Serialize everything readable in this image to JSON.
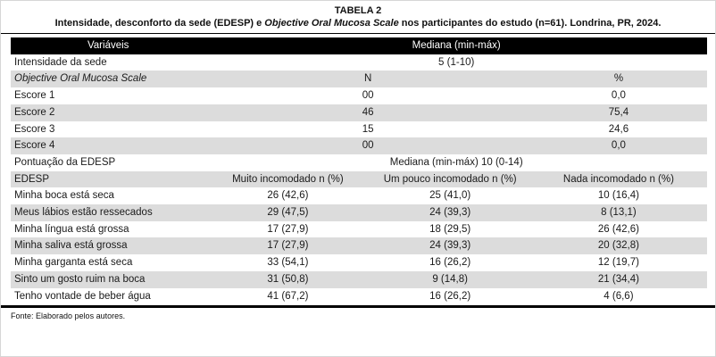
{
  "title": {
    "label": "TABELA 2",
    "caption_pre": "Intensidade, desconforto da sede (EDESP) e ",
    "caption_italic": "Objective Oral Mucosa Scale",
    "caption_post": " nos participantes do estudo (n=61). Londrina, PR, 2024."
  },
  "colors": {
    "header_bg": "#000000",
    "header_text": "#ffffff",
    "shade": "#dcdcdc",
    "rule": "#000000"
  },
  "table": {
    "header_row": {
      "cells": [
        {
          "t": "Variáveis",
          "span": 1,
          "align": "center"
        },
        {
          "t": "Mediana (min-máx)",
          "span": 3,
          "align": "center"
        }
      ]
    },
    "rows": [
      {
        "shade": false,
        "cells": [
          {
            "t": "Intensidade da sede",
            "span": 1,
            "align": "left"
          },
          {
            "t": "5 (1-10)",
            "span": 3,
            "align": "center"
          }
        ]
      },
      {
        "shade": true,
        "cells": [
          {
            "t": "Objective Oral Mucosa Scale",
            "span": 1,
            "align": "left",
            "italic": true
          },
          {
            "t": "N",
            "span": 2,
            "align": "center"
          },
          {
            "t": "%",
            "span": 1,
            "align": "center"
          }
        ]
      },
      {
        "shade": false,
        "cells": [
          {
            "t": "Escore 1",
            "span": 1,
            "align": "left"
          },
          {
            "t": "00",
            "span": 2,
            "align": "center"
          },
          {
            "t": "0,0",
            "span": 1,
            "align": "center"
          }
        ]
      },
      {
        "shade": true,
        "cells": [
          {
            "t": "Escore 2",
            "span": 1,
            "align": "left"
          },
          {
            "t": "46",
            "span": 2,
            "align": "center"
          },
          {
            "t": "75,4",
            "span": 1,
            "align": "center"
          }
        ]
      },
      {
        "shade": false,
        "cells": [
          {
            "t": "Escore 3",
            "span": 1,
            "align": "left"
          },
          {
            "t": "15",
            "span": 2,
            "align": "center"
          },
          {
            "t": "24,6",
            "span": 1,
            "align": "center"
          }
        ]
      },
      {
        "shade": true,
        "cells": [
          {
            "t": "Escore 4",
            "span": 1,
            "align": "left"
          },
          {
            "t": "00",
            "span": 2,
            "align": "center"
          },
          {
            "t": "0,0",
            "span": 1,
            "align": "center"
          }
        ]
      },
      {
        "shade": false,
        "cells": [
          {
            "t": "Pontuação da EDESP",
            "span": 1,
            "align": "left"
          },
          {
            "t": "Mediana (min-máx) 10 (0-14)",
            "span": 3,
            "align": "center"
          }
        ]
      },
      {
        "shade": true,
        "cells": [
          {
            "t": "EDESP",
            "span": 1,
            "align": "left"
          },
          {
            "t": "Muito incomodado n (%)",
            "span": 1,
            "align": "center"
          },
          {
            "t": "Um pouco incomodado n (%)",
            "span": 1,
            "align": "center"
          },
          {
            "t": "Nada incomodado n (%)",
            "span": 1,
            "align": "center"
          }
        ]
      },
      {
        "shade": false,
        "cells": [
          {
            "t": "Minha boca está seca",
            "span": 1,
            "align": "left"
          },
          {
            "t": "26 (42,6)",
            "span": 1,
            "align": "center"
          },
          {
            "t": "25 (41,0)",
            "span": 1,
            "align": "center"
          },
          {
            "t": "10 (16,4)",
            "span": 1,
            "align": "center"
          }
        ]
      },
      {
        "shade": true,
        "cells": [
          {
            "t": "Meus lábios estão ressecados",
            "span": 1,
            "align": "left"
          },
          {
            "t": "29 (47,5)",
            "span": 1,
            "align": "center"
          },
          {
            "t": "24 (39,3)",
            "span": 1,
            "align": "center"
          },
          {
            "t": "8 (13,1)",
            "span": 1,
            "align": "center"
          }
        ]
      },
      {
        "shade": false,
        "cells": [
          {
            "t": "Minha língua está grossa",
            "span": 1,
            "align": "left"
          },
          {
            "t": "17 (27,9)",
            "span": 1,
            "align": "center"
          },
          {
            "t": "18 (29,5)",
            "span": 1,
            "align": "center"
          },
          {
            "t": "26 (42,6)",
            "span": 1,
            "align": "center"
          }
        ]
      },
      {
        "shade": true,
        "cells": [
          {
            "t": "Minha saliva está grossa",
            "span": 1,
            "align": "left"
          },
          {
            "t": "17 (27,9)",
            "span": 1,
            "align": "center"
          },
          {
            "t": "24 (39,3)",
            "span": 1,
            "align": "center"
          },
          {
            "t": "20 (32,8)",
            "span": 1,
            "align": "center"
          }
        ]
      },
      {
        "shade": false,
        "cells": [
          {
            "t": "Minha garganta está seca",
            "span": 1,
            "align": "left"
          },
          {
            "t": "33 (54,1)",
            "span": 1,
            "align": "center"
          },
          {
            "t": "16 (26,2)",
            "span": 1,
            "align": "center"
          },
          {
            "t": "12 (19,7)",
            "span": 1,
            "align": "center"
          }
        ]
      },
      {
        "shade": true,
        "cells": [
          {
            "t": "Sinto um gosto ruim na boca",
            "span": 1,
            "align": "left"
          },
          {
            "t": "31 (50,8)",
            "span": 1,
            "align": "center"
          },
          {
            "t": "9 (14,8)",
            "span": 1,
            "align": "center"
          },
          {
            "t": "21 (34,4)",
            "span": 1,
            "align": "center"
          }
        ]
      },
      {
        "shade": false,
        "cells": [
          {
            "t": "Tenho vontade de beber água",
            "span": 1,
            "align": "left"
          },
          {
            "t": "41 (67,2)",
            "span": 1,
            "align": "center"
          },
          {
            "t": "16 (26,2)",
            "span": 1,
            "align": "center"
          },
          {
            "t": "4 (6,6)",
            "span": 1,
            "align": "center"
          }
        ]
      }
    ],
    "col_widths": [
      "28%",
      "23.6%",
      "23%",
      "25.4%"
    ]
  },
  "footer": {
    "source": "Fonte: Elaborado pelos autores."
  }
}
